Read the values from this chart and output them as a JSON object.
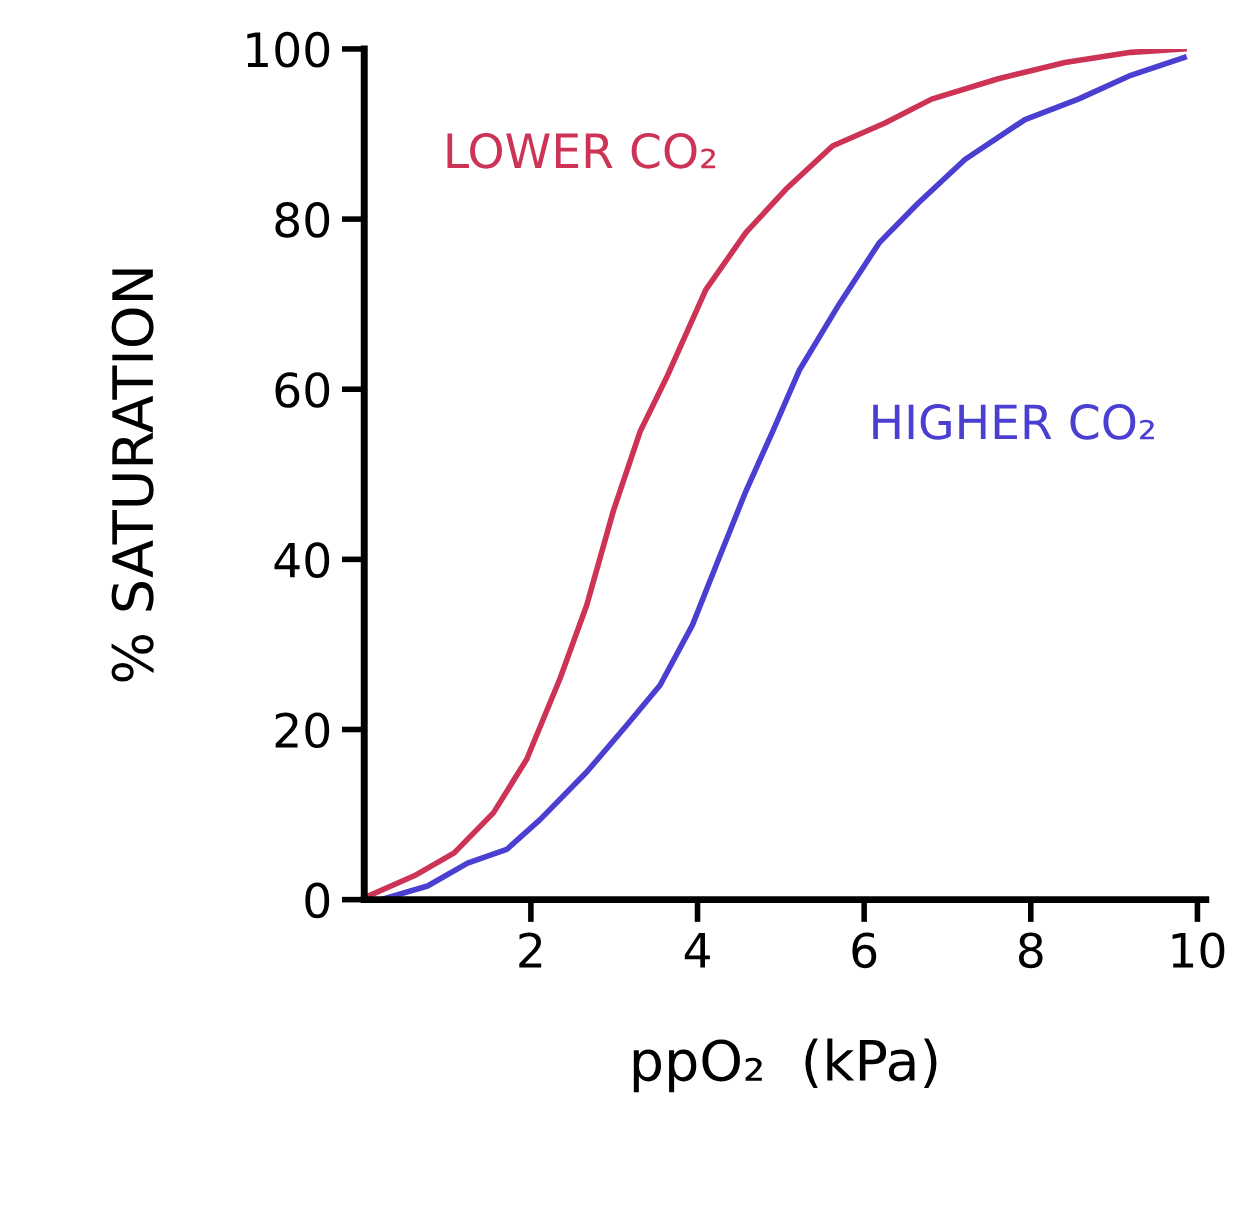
{
  "chart_data": {
    "type": "line",
    "xlabel": "ppO₂  (kPa)",
    "ylabel": "% SATURATION",
    "xlim": [
      0,
      10.1
    ],
    "ylim": [
      0,
      100
    ],
    "xticks": [
      2,
      4,
      6,
      8,
      10
    ],
    "yticks": [
      0,
      20,
      40,
      60,
      80,
      100
    ],
    "grid": false,
    "legend": false,
    "marker": "none",
    "line_style": "solid",
    "series": [
      {
        "name": "LOWER CO₂",
        "color": "#cc3355",
        "x": [
          0.04,
          0.6,
          1.08,
          1.55,
          1.95,
          2.35,
          2.67,
          2.99,
          3.31,
          3.63,
          4.1,
          4.58,
          5.06,
          5.62,
          6.25,
          6.81,
          7.61,
          8.41,
          9.2,
          9.84
        ],
        "values": [
          0.4,
          2.8,
          5.5,
          10.2,
          16.5,
          26,
          34.6,
          45.7,
          55,
          61.4,
          71.7,
          78.4,
          83.5,
          88.6,
          91.3,
          94.1,
          96.5,
          98.4,
          99.6,
          100
        ]
      },
      {
        "name": "HIGHER CO₂",
        "color": "#4a3fd0",
        "x": [
          0.2,
          0.76,
          1.24,
          1.71,
          2.11,
          2.67,
          3.15,
          3.55,
          3.94,
          4.26,
          4.58,
          4.9,
          5.22,
          5.7,
          6.18,
          6.65,
          7.21,
          7.93,
          8.57,
          9.2,
          9.84
        ],
        "values": [
          0,
          1.6,
          4.3,
          5.9,
          9.4,
          15,
          20.5,
          25.2,
          32.3,
          40.2,
          48,
          55,
          62.2,
          70,
          77.2,
          81.9,
          87,
          91.7,
          94.1,
          96.9,
          99
        ]
      }
    ]
  }
}
